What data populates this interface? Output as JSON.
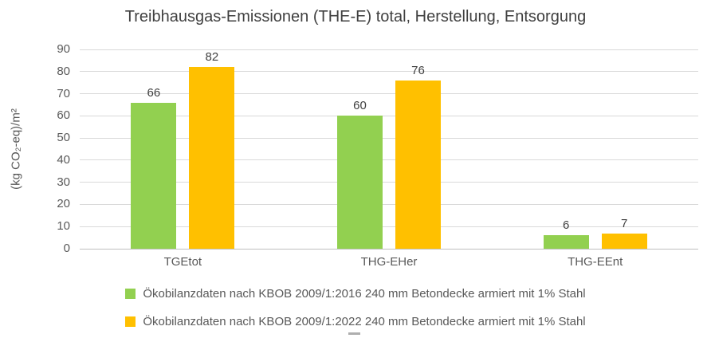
{
  "chart_data": {
    "type": "bar",
    "title": "Treibhausgas-Emissionen (THE-E) total, Herstellung, Entsorgung",
    "ylabel": "(kg CO₂-eq)/m²",
    "categories": [
      "TGEtot",
      "THG-EHer",
      "THG-EEnt"
    ],
    "series": [
      {
        "name": "Ökobilanzdaten nach KBOB 2009/1:2016 240 mm Betondecke armiert mit 1% Stahl",
        "color": "#92D050",
        "values": [
          66,
          60,
          6
        ]
      },
      {
        "name": "Ökobilanzdaten nach KBOB 2009/1:2022 240 mm Betondecke armiert mit 1% Stahl",
        "color": "#FFC000",
        "values": [
          82,
          76,
          7
        ]
      }
    ],
    "ylim": [
      0,
      90
    ],
    "ytick_step": 10,
    "grid": true,
    "legend_position": "bottom",
    "value_labels": true
  },
  "colors": {
    "background": "#FFFFFF",
    "gridline": "#D9D9D9",
    "axis_line": "#BFBFBF",
    "tick_text": "#595959",
    "category_text": "#595959",
    "title_text": "#404040",
    "value_label_text": "#404040",
    "legend_text": "#595959"
  }
}
